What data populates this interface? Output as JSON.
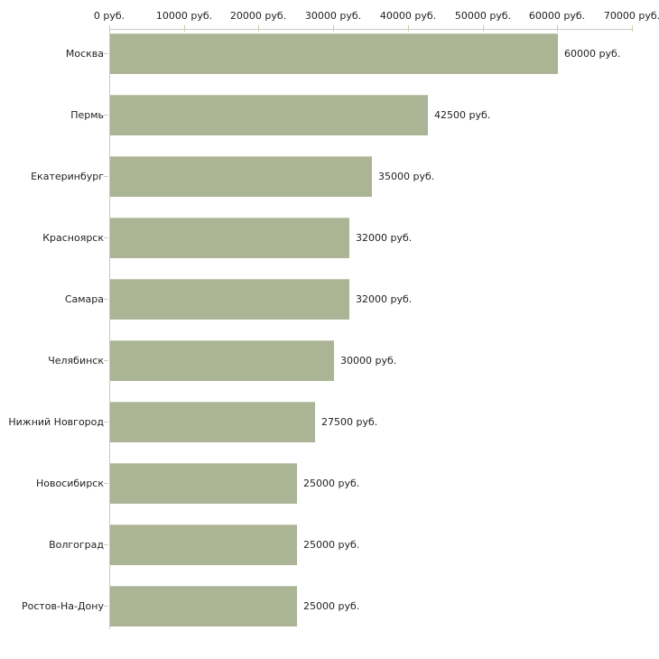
{
  "chart_data": {
    "type": "bar",
    "orientation": "horizontal",
    "title": "",
    "categories": [
      "Москва",
      "Пермь",
      "Екатеринбург",
      "Красноярск",
      "Самара",
      "Челябинск",
      "Нижний Новгород",
      "Новосибирск",
      "Волгоград",
      "Ростов-На-Дону"
    ],
    "values": [
      60000,
      42500,
      35000,
      32000,
      32000,
      30000,
      27500,
      25000,
      25000,
      25000
    ],
    "value_labels": [
      "60000 руб.",
      "42500 руб.",
      "35000 руб.",
      "32000 руб.",
      "32000 руб.",
      "30000 руб.",
      "27500 руб.",
      "25000 руб.",
      "25000 руб.",
      "25000 руб."
    ],
    "unit_suffix": " руб.",
    "x_axis": {
      "position": "top",
      "min": 0,
      "max": 70000,
      "step": 10000,
      "tick_labels": [
        "0 руб.",
        "10000 руб.",
        "20000 руб.",
        "30000 руб.",
        "40000 руб.",
        "50000 руб.",
        "60000 руб.",
        "70000 руб."
      ]
    },
    "grid": false,
    "legend": false,
    "colors": {
      "bar": "#acb496",
      "bar_top_edge": "#c5cbb1",
      "axis_line": "#c8c8c8",
      "tick": "#d2cba6",
      "text": "#1f1f1f",
      "background": "#ffffff"
    }
  }
}
